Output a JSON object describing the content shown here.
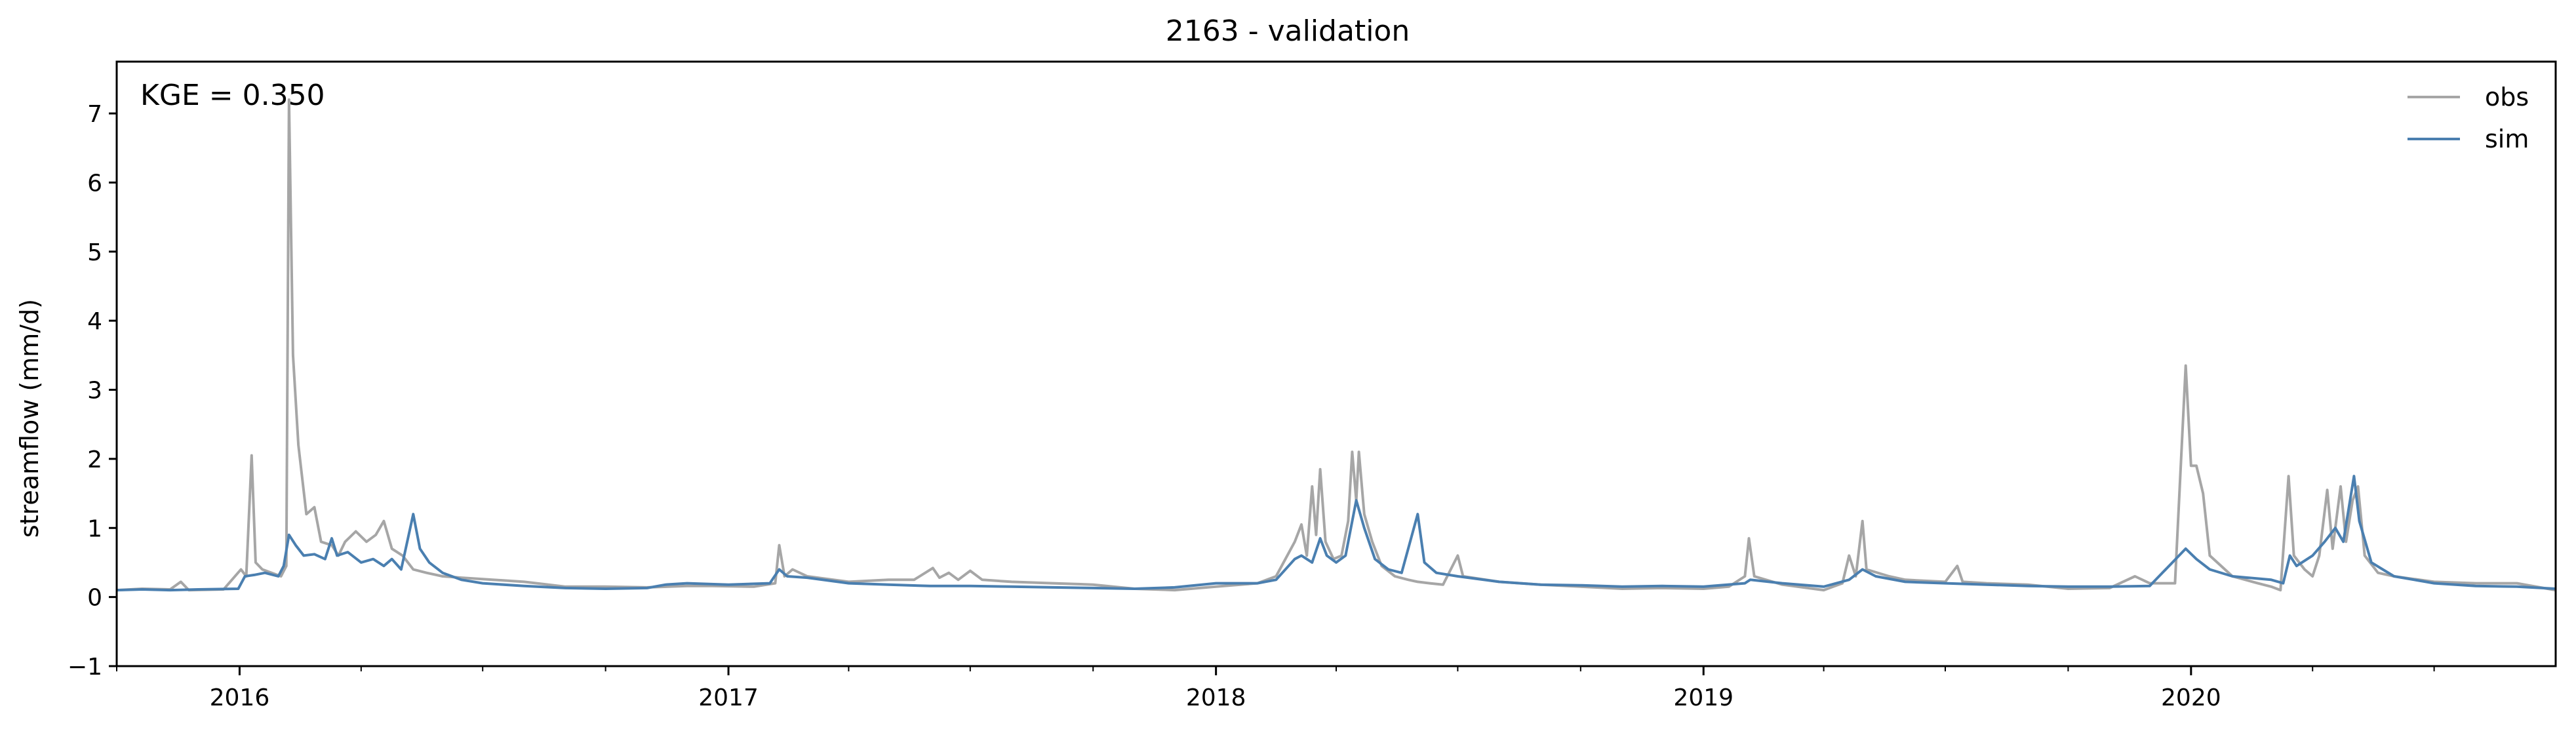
{
  "chart_data": {
    "type": "line",
    "title": "2163 - validation",
    "xlabel": "",
    "ylabel": "streamflow (mm/d)",
    "annotation": "KGE = 0.350",
    "xlim": [
      "2015-10-01",
      "2020-09-30"
    ],
    "ylim": [
      -1,
      7.75
    ],
    "yticks": [
      -1,
      0,
      1,
      2,
      3,
      4,
      5,
      6,
      7
    ],
    "xticks": [
      {
        "label": "2016",
        "date": "2016-01-01"
      },
      {
        "label": "2017",
        "date": "2017-01-01"
      },
      {
        "label": "2018",
        "date": "2018-01-01"
      },
      {
        "label": "2019",
        "date": "2019-01-01"
      },
      {
        "label": "2020",
        "date": "2020-01-01"
      }
    ],
    "legend": {
      "placement": "top-right"
    },
    "grid": false,
    "series": [
      {
        "name": "obs",
        "color": "#a6a6a6",
        "points": [
          [
            "2015-10-01",
            0.1
          ],
          [
            "2015-10-20",
            0.12
          ],
          [
            "2015-11-10",
            0.11
          ],
          [
            "2015-11-18",
            0.22
          ],
          [
            "2015-11-24",
            0.1
          ],
          [
            "2015-12-20",
            0.11
          ],
          [
            "2016-01-02",
            0.4
          ],
          [
            "2016-01-06",
            0.3
          ],
          [
            "2016-01-10",
            2.05
          ],
          [
            "2016-01-13",
            0.5
          ],
          [
            "2016-01-18",
            0.4
          ],
          [
            "2016-02-01",
            0.3
          ],
          [
            "2016-02-05",
            0.45
          ],
          [
            "2016-02-07",
            7.2
          ],
          [
            "2016-02-10",
            3.5
          ],
          [
            "2016-02-14",
            2.2
          ],
          [
            "2016-02-20",
            1.2
          ],
          [
            "2016-02-26",
            1.3
          ],
          [
            "2016-03-02",
            0.8
          ],
          [
            "2016-03-10",
            0.75
          ],
          [
            "2016-03-15",
            0.6
          ],
          [
            "2016-03-20",
            0.8
          ],
          [
            "2016-03-28",
            0.95
          ],
          [
            "2016-04-05",
            0.8
          ],
          [
            "2016-04-12",
            0.9
          ],
          [
            "2016-04-18",
            1.1
          ],
          [
            "2016-04-24",
            0.7
          ],
          [
            "2016-05-02",
            0.6
          ],
          [
            "2016-05-10",
            0.4
          ],
          [
            "2016-05-20",
            0.35
          ],
          [
            "2016-06-01",
            0.3
          ],
          [
            "2016-06-15",
            0.28
          ],
          [
            "2016-07-01",
            0.26
          ],
          [
            "2016-08-01",
            0.22
          ],
          [
            "2016-09-01",
            0.15
          ],
          [
            "2016-10-01",
            0.15
          ],
          [
            "2016-11-01",
            0.14
          ],
          [
            "2016-12-01",
            0.16
          ],
          [
            "2016-12-20",
            0.16
          ],
          [
            "2017-01-20",
            0.15
          ],
          [
            "2017-02-05",
            0.2
          ],
          [
            "2017-02-08",
            0.75
          ],
          [
            "2017-02-12",
            0.3
          ],
          [
            "2017-02-18",
            0.4
          ],
          [
            "2017-03-01",
            0.3
          ],
          [
            "2017-04-01",
            0.22
          ],
          [
            "2017-05-01",
            0.25
          ],
          [
            "2017-05-20",
            0.25
          ],
          [
            "2017-06-03",
            0.42
          ],
          [
            "2017-06-08",
            0.28
          ],
          [
            "2017-06-15",
            0.35
          ],
          [
            "2017-06-22",
            0.25
          ],
          [
            "2017-07-01",
            0.38
          ],
          [
            "2017-07-10",
            0.25
          ],
          [
            "2017-08-01",
            0.22
          ],
          [
            "2017-09-01",
            0.2
          ],
          [
            "2017-10-01",
            0.18
          ],
          [
            "2017-11-01",
            0.12
          ],
          [
            "2017-12-01",
            0.1
          ],
          [
            "2018-01-01",
            0.15
          ],
          [
            "2018-02-01",
            0.2
          ],
          [
            "2018-02-15",
            0.3
          ],
          [
            "2018-03-01",
            0.8
          ],
          [
            "2018-03-06",
            1.05
          ],
          [
            "2018-03-10",
            0.6
          ],
          [
            "2018-03-14",
            1.6
          ],
          [
            "2018-03-17",
            0.9
          ],
          [
            "2018-03-20",
            1.85
          ],
          [
            "2018-03-24",
            0.8
          ],
          [
            "2018-03-30",
            0.55
          ],
          [
            "2018-04-05",
            0.6
          ],
          [
            "2018-04-10",
            1.1
          ],
          [
            "2018-04-13",
            2.1
          ],
          [
            "2018-04-16",
            1.4
          ],
          [
            "2018-04-18",
            2.1
          ],
          [
            "2018-04-22",
            1.2
          ],
          [
            "2018-04-28",
            0.8
          ],
          [
            "2018-05-05",
            0.45
          ],
          [
            "2018-05-15",
            0.3
          ],
          [
            "2018-05-25",
            0.25
          ],
          [
            "2018-06-01",
            0.22
          ],
          [
            "2018-06-10",
            0.2
          ],
          [
            "2018-06-20",
            0.18
          ],
          [
            "2018-07-01",
            0.6
          ],
          [
            "2018-07-05",
            0.3
          ],
          [
            "2018-08-01",
            0.22
          ],
          [
            "2018-09-01",
            0.18
          ],
          [
            "2018-10-01",
            0.15
          ],
          [
            "2018-11-01",
            0.12
          ],
          [
            "2018-12-01",
            0.13
          ],
          [
            "2019-01-01",
            0.12
          ],
          [
            "2019-01-20",
            0.15
          ],
          [
            "2019-02-01",
            0.3
          ],
          [
            "2019-02-04",
            0.85
          ],
          [
            "2019-02-08",
            0.3
          ],
          [
            "2019-03-01",
            0.18
          ],
          [
            "2019-04-01",
            0.1
          ],
          [
            "2019-04-15",
            0.2
          ],
          [
            "2019-04-20",
            0.6
          ],
          [
            "2019-04-25",
            0.3
          ],
          [
            "2019-04-30",
            1.1
          ],
          [
            "2019-05-03",
            0.4
          ],
          [
            "2019-05-20",
            0.3
          ],
          [
            "2019-06-01",
            0.25
          ],
          [
            "2019-07-01",
            0.22
          ],
          [
            "2019-07-10",
            0.45
          ],
          [
            "2019-07-14",
            0.22
          ],
          [
            "2019-08-01",
            0.2
          ],
          [
            "2019-09-01",
            0.18
          ],
          [
            "2019-10-01",
            0.12
          ],
          [
            "2019-11-01",
            0.13
          ],
          [
            "2019-11-20",
            0.3
          ],
          [
            "2019-12-01",
            0.2
          ],
          [
            "2019-12-20",
            0.2
          ],
          [
            "2019-12-28",
            3.35
          ],
          [
            "2020-01-01",
            1.9
          ],
          [
            "2020-01-05",
            1.9
          ],
          [
            "2020-01-10",
            1.5
          ],
          [
            "2020-01-15",
            0.6
          ],
          [
            "2020-02-01",
            0.3
          ],
          [
            "2020-02-20",
            0.2
          ],
          [
            "2020-03-01",
            0.15
          ],
          [
            "2020-03-08",
            0.1
          ],
          [
            "2020-03-14",
            1.75
          ],
          [
            "2020-03-18",
            0.6
          ],
          [
            "2020-03-26",
            0.4
          ],
          [
            "2020-04-01",
            0.3
          ],
          [
            "2020-04-06",
            0.6
          ],
          [
            "2020-04-12",
            1.55
          ],
          [
            "2020-04-16",
            0.7
          ],
          [
            "2020-04-22",
            1.6
          ],
          [
            "2020-04-26",
            0.8
          ],
          [
            "2020-05-01",
            1.4
          ],
          [
            "2020-05-05",
            1.6
          ],
          [
            "2020-05-10",
            0.6
          ],
          [
            "2020-05-20",
            0.35
          ],
          [
            "2020-06-01",
            0.3
          ],
          [
            "2020-07-01",
            0.22
          ],
          [
            "2020-08-01",
            0.2
          ],
          [
            "2020-09-01",
            0.2
          ],
          [
            "2020-09-30",
            0.1
          ]
        ]
      },
      {
        "name": "sim",
        "color": "#4a7fb0",
        "points": [
          [
            "2015-10-01",
            0.1
          ],
          [
            "2015-10-20",
            0.11
          ],
          [
            "2015-11-10",
            0.1
          ],
          [
            "2015-12-01",
            0.11
          ],
          [
            "2015-12-31",
            0.12
          ],
          [
            "2016-01-05",
            0.3
          ],
          [
            "2016-01-12",
            0.32
          ],
          [
            "2016-01-20",
            0.35
          ],
          [
            "2016-01-30",
            0.3
          ],
          [
            "2016-02-03",
            0.45
          ],
          [
            "2016-02-07",
            0.9
          ],
          [
            "2016-02-12",
            0.75
          ],
          [
            "2016-02-18",
            0.6
          ],
          [
            "2016-02-26",
            0.62
          ],
          [
            "2016-03-05",
            0.55
          ],
          [
            "2016-03-10",
            0.85
          ],
          [
            "2016-03-14",
            0.6
          ],
          [
            "2016-03-22",
            0.65
          ],
          [
            "2016-04-01",
            0.5
          ],
          [
            "2016-04-10",
            0.55
          ],
          [
            "2016-04-18",
            0.45
          ],
          [
            "2016-04-24",
            0.55
          ],
          [
            "2016-05-01",
            0.4
          ],
          [
            "2016-05-10",
            1.2
          ],
          [
            "2016-05-15",
            0.7
          ],
          [
            "2016-05-22",
            0.5
          ],
          [
            "2016-06-01",
            0.35
          ],
          [
            "2016-06-15",
            0.25
          ],
          [
            "2016-07-01",
            0.2
          ],
          [
            "2016-08-01",
            0.16
          ],
          [
            "2016-09-01",
            0.13
          ],
          [
            "2016-10-01",
            0.12
          ],
          [
            "2016-11-01",
            0.13
          ],
          [
            "2016-11-15",
            0.18
          ],
          [
            "2016-12-01",
            0.2
          ],
          [
            "2017-01-01",
            0.18
          ],
          [
            "2017-02-01",
            0.2
          ],
          [
            "2017-02-08",
            0.4
          ],
          [
            "2017-02-14",
            0.3
          ],
          [
            "2017-03-01",
            0.28
          ],
          [
            "2017-04-01",
            0.2
          ],
          [
            "2017-05-01",
            0.18
          ],
          [
            "2017-06-01",
            0.16
          ],
          [
            "2017-07-01",
            0.16
          ],
          [
            "2017-08-01",
            0.15
          ],
          [
            "2017-09-01",
            0.14
          ],
          [
            "2017-10-01",
            0.13
          ],
          [
            "2017-11-01",
            0.12
          ],
          [
            "2017-12-01",
            0.14
          ],
          [
            "2018-01-01",
            0.2
          ],
          [
            "2018-02-01",
            0.2
          ],
          [
            "2018-02-15",
            0.25
          ],
          [
            "2018-03-01",
            0.55
          ],
          [
            "2018-03-06",
            0.6
          ],
          [
            "2018-03-14",
            0.5
          ],
          [
            "2018-03-20",
            0.85
          ],
          [
            "2018-03-25",
            0.6
          ],
          [
            "2018-04-01",
            0.5
          ],
          [
            "2018-04-08",
            0.6
          ],
          [
            "2018-04-16",
            1.4
          ],
          [
            "2018-04-22",
            1.0
          ],
          [
            "2018-04-30",
            0.55
          ],
          [
            "2018-05-10",
            0.4
          ],
          [
            "2018-05-20",
            0.35
          ],
          [
            "2018-06-01",
            1.2
          ],
          [
            "2018-06-06",
            0.5
          ],
          [
            "2018-06-15",
            0.35
          ],
          [
            "2018-07-01",
            0.3
          ],
          [
            "2018-08-01",
            0.22
          ],
          [
            "2018-09-01",
            0.18
          ],
          [
            "2018-10-01",
            0.17
          ],
          [
            "2018-11-01",
            0.15
          ],
          [
            "2018-12-01",
            0.16
          ],
          [
            "2019-01-01",
            0.15
          ],
          [
            "2019-02-01",
            0.2
          ],
          [
            "2019-02-05",
            0.25
          ],
          [
            "2019-03-01",
            0.2
          ],
          [
            "2019-04-01",
            0.15
          ],
          [
            "2019-04-20",
            0.25
          ],
          [
            "2019-04-30",
            0.4
          ],
          [
            "2019-05-10",
            0.3
          ],
          [
            "2019-06-01",
            0.22
          ],
          [
            "2019-07-01",
            0.2
          ],
          [
            "2019-08-01",
            0.18
          ],
          [
            "2019-09-01",
            0.16
          ],
          [
            "2019-10-01",
            0.15
          ],
          [
            "2019-11-01",
            0.15
          ],
          [
            "2019-12-01",
            0.16
          ],
          [
            "2019-12-28",
            0.7
          ],
          [
            "2020-01-05",
            0.55
          ],
          [
            "2020-01-15",
            0.4
          ],
          [
            "2020-02-01",
            0.3
          ],
          [
            "2020-03-01",
            0.25
          ],
          [
            "2020-03-10",
            0.2
          ],
          [
            "2020-03-15",
            0.6
          ],
          [
            "2020-03-20",
            0.45
          ],
          [
            "2020-04-01",
            0.6
          ],
          [
            "2020-04-10",
            0.8
          ],
          [
            "2020-04-18",
            1.0
          ],
          [
            "2020-04-24",
            0.8
          ],
          [
            "2020-05-02",
            1.75
          ],
          [
            "2020-05-06",
            1.1
          ],
          [
            "2020-05-15",
            0.5
          ],
          [
            "2020-06-01",
            0.3
          ],
          [
            "2020-07-01",
            0.2
          ],
          [
            "2020-08-01",
            0.16
          ],
          [
            "2020-09-01",
            0.15
          ],
          [
            "2020-09-30",
            0.12
          ]
        ]
      }
    ]
  }
}
